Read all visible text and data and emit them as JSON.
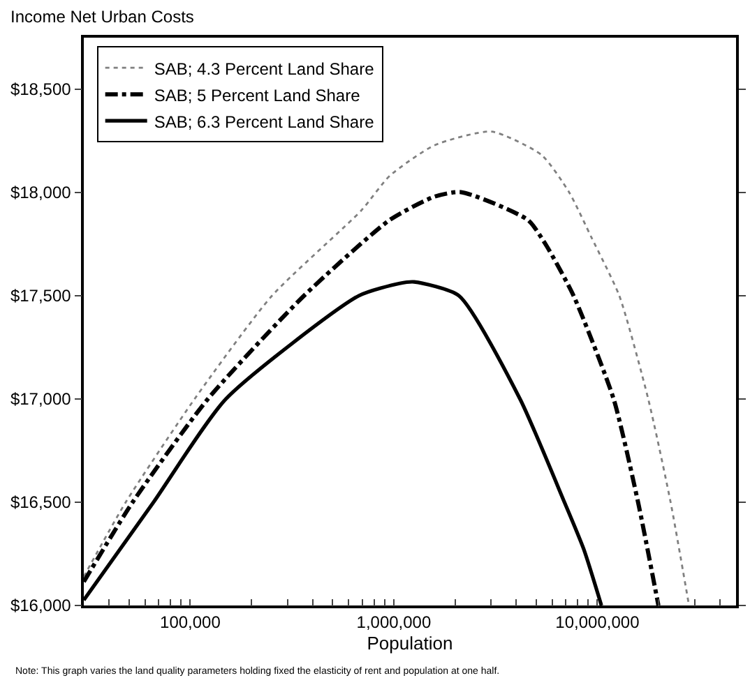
{
  "chart_data": {
    "type": "line",
    "title": "Income Net Urban Costs",
    "xlabel": "Population",
    "log": "x",
    "legend": "top left",
    "marker": "none",
    "xlim": [
      30000,
      48000000
    ],
    "xticks": [
      {
        "value": 40000,
        "label": null
      },
      {
        "value": 50000,
        "label": null
      },
      {
        "value": 60000,
        "label": null
      },
      {
        "value": 70000,
        "label": null
      },
      {
        "value": 80000,
        "label": null
      },
      {
        "value": 90000,
        "label": null
      },
      {
        "value": 100000,
        "label": "100,000"
      },
      {
        "value": 200000,
        "label": null
      },
      {
        "value": 300000,
        "label": null
      },
      {
        "value": 400000,
        "label": null
      },
      {
        "value": 500000,
        "label": null
      },
      {
        "value": 600000,
        "label": null
      },
      {
        "value": 700000,
        "label": null
      },
      {
        "value": 800000,
        "label": null
      },
      {
        "value": 900000,
        "label": null
      },
      {
        "value": 1000000,
        "label": "1,000,000"
      },
      {
        "value": 2000000,
        "label": null
      },
      {
        "value": 3000000,
        "label": null
      },
      {
        "value": 4000000,
        "label": null
      },
      {
        "value": 5000000,
        "label": null
      },
      {
        "value": 6000000,
        "label": null
      },
      {
        "value": 7000000,
        "label": null
      },
      {
        "value": 8000000,
        "label": null
      },
      {
        "value": 9000000,
        "label": null
      },
      {
        "value": 10000000,
        "label": "10,000,000"
      },
      {
        "value": 20000000,
        "label": null
      },
      {
        "value": 30000000,
        "label": null
      },
      {
        "value": 40000000,
        "label": null
      }
    ],
    "ylim": [
      16000,
      18750
    ],
    "yticks": [
      {
        "value": 16000,
        "label": "$16,000"
      },
      {
        "value": 16500,
        "label": "$16,500"
      },
      {
        "value": 17000,
        "label": "$17,000"
      },
      {
        "value": 17500,
        "label": "$17,500"
      },
      {
        "value": 18000,
        "label": "$18,000"
      },
      {
        "value": 18500,
        "label": "$18,500"
      }
    ],
    "series": [
      {
        "name": "SAB; 4.3 Percent Land Share",
        "color": "#808080",
        "line_style": "dotted",
        "x": [
          30000,
          48200,
          105000,
          252000,
          692000,
          955000,
          1585000,
          3020000,
          5320000,
          7260000,
          9400000,
          12820000,
          17780000,
          22900000,
          28200000
        ],
        "values": [
          16140,
          16500,
          17000,
          17500,
          17913,
          18081,
          18229,
          18295,
          18182,
          18002,
          17778,
          17500,
          17000,
          16500,
          16000
        ]
      },
      {
        "name": "SAB; 5 Percent Land Share",
        "color": "#000000",
        "line_style": "dashdot",
        "x": [
          30000,
          52100,
          122000,
          362000,
          955000,
          1585000,
          2140000,
          4560000,
          5610000,
          7640000,
          12020000,
          15850000,
          19950000
        ],
        "values": [
          16115,
          16500,
          17000,
          17500,
          17867,
          17980,
          18002,
          17867,
          17744,
          17500,
          17000,
          16500,
          16000
        ]
      },
      {
        "name": "SAB; 6.3 Percent Land Share",
        "color": "#000000",
        "line_style": "solid",
        "x": [
          30000,
          66000,
          149600,
          673000,
          1070000,
          1259000,
          2090000,
          4170000,
          6890000,
          8570000,
          10470000
        ],
        "values": [
          16026,
          16500,
          17000,
          17500,
          17560,
          17567,
          17500,
          17000,
          16500,
          16273,
          16000
        ]
      }
    ],
    "annotations": [
      "Note: This graph varies the land quality parameters holding fixed the elasticity of rent and population at one half."
    ]
  }
}
